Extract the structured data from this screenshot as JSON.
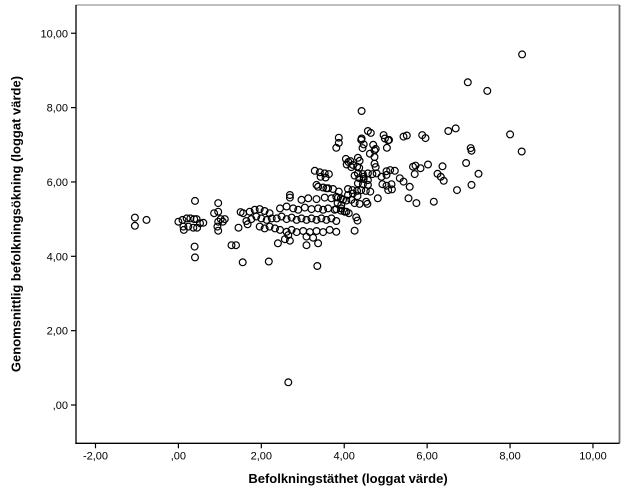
{
  "chart_data": {
    "type": "scatter",
    "title": "",
    "xlabel": "Befolkningstäthet (loggat värde)",
    "ylabel": "Genomsnittlig befolkningsökning (loggat värde)",
    "x_ticks": {
      "values": [
        -2,
        0,
        2,
        4,
        6,
        8,
        10
      ],
      "labels": [
        "-2,00",
        ",00",
        "2,00",
        "4,00",
        "6,00",
        "8,00",
        "10,00"
      ]
    },
    "y_ticks": {
      "values": [
        0,
        2,
        4,
        6,
        8,
        10
      ],
      "labels": [
        ",00",
        "2,00",
        "4,00",
        "6,00",
        "8,00",
        "10,00"
      ]
    },
    "xlim": [
      -2.47,
      10.64
    ],
    "ylim": [
      -1.03,
      10.76
    ],
    "grid": false,
    "legend": null,
    "marker": {
      "shape": "open-circle",
      "color": "#000000",
      "radius_px": 3.4,
      "stroke_px": 1.2
    },
    "frame_colors": {
      "axis": "#000000",
      "top": "#999999",
      "right": "#6e6e6e"
    },
    "points": [
      [
        -1.05,
        5.04
      ],
      [
        -1.05,
        4.82
      ],
      [
        -0.77,
        4.98
      ],
      [
        0.4,
        5.49
      ],
      [
        0.0,
        4.93
      ],
      [
        0.1,
        4.98
      ],
      [
        0.2,
        5.02
      ],
      [
        0.29,
        5.02
      ],
      [
        0.38,
        5.0
      ],
      [
        0.44,
        5.0
      ],
      [
        0.12,
        4.8
      ],
      [
        0.13,
        4.71
      ],
      [
        0.24,
        4.8
      ],
      [
        0.36,
        4.77
      ],
      [
        0.45,
        4.77
      ],
      [
        0.52,
        4.89
      ],
      [
        0.6,
        4.9
      ],
      [
        0.39,
        4.26
      ],
      [
        0.4,
        3.97
      ],
      [
        0.86,
        5.16
      ],
      [
        0.96,
        5.43
      ],
      [
        0.96,
        5.2
      ],
      [
        0.96,
        4.93
      ],
      [
        1.02,
        5.0
      ],
      [
        1.07,
        4.93
      ],
      [
        1.12,
        5.0
      ],
      [
        0.94,
        4.8
      ],
      [
        0.96,
        4.69
      ],
      [
        1.5,
        5.19
      ],
      [
        1.45,
        4.77
      ],
      [
        1.28,
        4.3
      ],
      [
        1.39,
        4.3
      ],
      [
        1.55,
        3.84
      ],
      [
        1.56,
        5.16
      ],
      [
        1.72,
        5.2
      ],
      [
        1.84,
        5.25
      ],
      [
        1.96,
        5.27
      ],
      [
        2.08,
        5.22
      ],
      [
        2.2,
        5.16
      ],
      [
        1.88,
        5.07
      ],
      [
        2.0,
        5.02
      ],
      [
        1.76,
        5.0
      ],
      [
        1.64,
        4.95
      ],
      [
        2.13,
        4.98
      ],
      [
        2.25,
        5.02
      ],
      [
        1.67,
        4.86
      ],
      [
        1.96,
        4.8
      ],
      [
        2.08,
        4.75
      ],
      [
        2.2,
        4.8
      ],
      [
        2.33,
        4.75
      ],
      [
        2.45,
        4.71
      ],
      [
        2.69,
        5.58
      ],
      [
        2.97,
        5.52
      ],
      [
        3.13,
        5.56
      ],
      [
        3.33,
        5.54
      ],
      [
        3.53,
        5.58
      ],
      [
        3.69,
        5.56
      ],
      [
        3.85,
        5.58
      ],
      [
        3.97,
        5.52
      ],
      [
        2.45,
        5.29
      ],
      [
        2.61,
        5.34
      ],
      [
        2.77,
        5.29
      ],
      [
        2.89,
        5.25
      ],
      [
        3.05,
        5.31
      ],
      [
        3.21,
        5.27
      ],
      [
        3.37,
        5.29
      ],
      [
        3.49,
        5.25
      ],
      [
        3.61,
        5.29
      ],
      [
        3.77,
        5.25
      ],
      [
        3.93,
        5.29
      ],
      [
        4.05,
        5.2
      ],
      [
        2.37,
        5.02
      ],
      [
        2.49,
        5.07
      ],
      [
        2.61,
        5.0
      ],
      [
        2.73,
        5.04
      ],
      [
        2.85,
        4.98
      ],
      [
        2.97,
        5.02
      ],
      [
        3.09,
        4.98
      ],
      [
        3.21,
        5.02
      ],
      [
        3.33,
        4.98
      ],
      [
        3.45,
        5.02
      ],
      [
        3.57,
        4.98
      ],
      [
        3.69,
        5.02
      ],
      [
        3.81,
        4.95
      ],
      [
        2.61,
        4.66
      ],
      [
        2.73,
        4.71
      ],
      [
        2.85,
        4.65
      ],
      [
        3.01,
        4.68
      ],
      [
        3.17,
        4.65
      ],
      [
        3.33,
        4.68
      ],
      [
        3.49,
        4.65
      ],
      [
        3.65,
        4.71
      ],
      [
        3.81,
        4.66
      ],
      [
        2.65,
        4.57
      ],
      [
        3.09,
        4.53
      ],
      [
        3.25,
        4.5
      ],
      [
        2.57,
        4.46
      ],
      [
        2.69,
        4.42
      ],
      [
        2.4,
        4.35
      ],
      [
        3.09,
        4.3
      ],
      [
        3.37,
        4.35
      ],
      [
        2.18,
        3.86
      ],
      [
        3.35,
        3.74
      ],
      [
        2.65,
        0.61
      ],
      [
        2.69,
        5.65
      ],
      [
        3.33,
        5.92
      ],
      [
        3.57,
        5.83
      ],
      [
        3.37,
        5.87
      ],
      [
        3.49,
        5.85
      ],
      [
        3.61,
        5.83
      ],
      [
        3.73,
        5.81
      ],
      [
        3.87,
        5.74
      ],
      [
        4.09,
        5.81
      ],
      [
        4.2,
        5.78
      ],
      [
        4.31,
        5.76
      ],
      [
        4.41,
        5.78
      ],
      [
        4.52,
        5.76
      ],
      [
        4.63,
        5.74
      ],
      [
        4.33,
        5.96
      ],
      [
        4.45,
        5.94
      ],
      [
        4.57,
        5.92
      ],
      [
        4.92,
        5.94
      ],
      [
        5.02,
        5.9
      ],
      [
        5.14,
        5.94
      ],
      [
        5.06,
        5.78
      ],
      [
        5.15,
        5.8
      ],
      [
        5.58,
        5.87
      ],
      [
        3.81,
        5.6
      ],
      [
        3.92,
        5.56
      ],
      [
        3.84,
        5.43
      ],
      [
        3.93,
        5.38
      ],
      [
        3.81,
        5.27
      ],
      [
        3.92,
        5.23
      ],
      [
        4.09,
        5.65
      ],
      [
        4.21,
        5.69
      ],
      [
        4.32,
        5.62
      ],
      [
        4.05,
        5.5
      ],
      [
        4.17,
        5.52
      ],
      [
        4.25,
        5.43
      ],
      [
        4.37,
        5.41
      ],
      [
        4.53,
        5.47
      ],
      [
        4.56,
        5.41
      ],
      [
        4.81,
        5.56
      ],
      [
        5.55,
        5.56
      ],
      [
        5.74,
        5.43
      ],
      [
        4.01,
        5.2
      ],
      [
        4.11,
        5.16
      ],
      [
        4.29,
        5.05
      ],
      [
        4.32,
        4.96
      ],
      [
        4.25,
        4.69
      ],
      [
        3.29,
        6.3
      ],
      [
        3.41,
        6.26
      ],
      [
        3.53,
        6.23
      ],
      [
        3.63,
        6.21
      ],
      [
        3.43,
        6.14
      ],
      [
        3.55,
        6.12
      ],
      [
        4.25,
        6.17
      ],
      [
        4.33,
        6.23
      ],
      [
        4.45,
        6.21
      ],
      [
        4.57,
        6.23
      ],
      [
        4.68,
        6.21
      ],
      [
        4.78,
        6.23
      ],
      [
        4.47,
        6.14
      ],
      [
        4.36,
        6.1
      ],
      [
        4.47,
        6.08
      ],
      [
        4.57,
        6.05
      ],
      [
        4.9,
        6.14
      ],
      [
        5.02,
        6.19
      ],
      [
        5.02,
        6.29
      ],
      [
        5.11,
        6.32
      ],
      [
        5.22,
        6.3
      ],
      [
        5.34,
        6.1
      ],
      [
        5.43,
        6.01
      ],
      [
        5.7,
        6.21
      ],
      [
        6.25,
        6.22
      ],
      [
        6.33,
        6.14
      ],
      [
        7.24,
        6.22
      ],
      [
        6.4,
        6.03
      ],
      [
        4.04,
        6.62
      ],
      [
        4.15,
        6.56
      ],
      [
        4.21,
        6.46
      ],
      [
        4.31,
        6.41
      ],
      [
        4.33,
        6.65
      ],
      [
        4.37,
        6.57
      ],
      [
        4.1,
        6.54
      ],
      [
        4.06,
        6.47
      ],
      [
        4.17,
        6.4
      ],
      [
        4.36,
        6.38
      ],
      [
        4.73,
        6.49
      ],
      [
        4.76,
        6.4
      ],
      [
        5.66,
        6.41
      ],
      [
        5.84,
        6.37
      ],
      [
        5.72,
        6.44
      ],
      [
        6.02,
        6.47
      ],
      [
        6.37,
        6.42
      ],
      [
        6.94,
        6.51
      ],
      [
        4.42,
        7.91
      ],
      [
        4.57,
        7.37
      ],
      [
        4.64,
        7.32
      ],
      [
        4.42,
        7.17
      ],
      [
        4.95,
        7.26
      ],
      [
        5.06,
        7.12
      ],
      [
        5.51,
        7.25
      ],
      [
        3.87,
        7.19
      ],
      [
        3.87,
        7.05
      ],
      [
        3.81,
        6.92
      ],
      [
        4.41,
        7.13
      ],
      [
        4.47,
        7.01
      ],
      [
        4.44,
        6.91
      ],
      [
        4.98,
        7.17
      ],
      [
        5.08,
        7.13
      ],
      [
        5.43,
        7.22
      ],
      [
        4.76,
        6.89
      ],
      [
        5.03,
        6.92
      ],
      [
        4.7,
        7.0
      ],
      [
        4.73,
        6.85
      ],
      [
        4.62,
        6.76
      ],
      [
        4.73,
        6.67
      ],
      [
        5.88,
        7.26
      ],
      [
        5.96,
        7.18
      ],
      [
        6.51,
        7.37
      ],
      [
        6.69,
        7.44
      ],
      [
        8.0,
        7.28
      ],
      [
        7.05,
        6.91
      ],
      [
        7.07,
        6.84
      ],
      [
        8.28,
        6.82
      ],
      [
        6.98,
        8.68
      ],
      [
        7.45,
        8.45
      ],
      [
        8.29,
        9.43
      ],
      [
        6.72,
        5.78
      ],
      [
        7.07,
        5.92
      ],
      [
        6.16,
        5.47
      ]
    ]
  }
}
